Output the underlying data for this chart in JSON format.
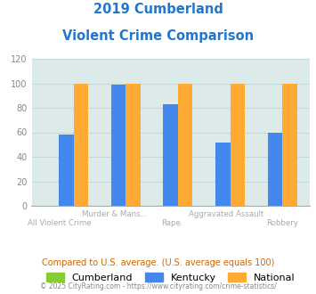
{
  "title_line1": "2019 Cumberland",
  "title_line2": "Violent Crime Comparison",
  "categories": [
    "All Violent Crime",
    "Murder & Mans...",
    "Rape",
    "Aggravated Assault",
    "Robbery"
  ],
  "series": {
    "Cumberland": [
      0,
      0,
      0,
      0,
      0
    ],
    "Kentucky": [
      58,
      99,
      83,
      52,
      60
    ],
    "National": [
      100,
      100,
      100,
      100,
      100
    ]
  },
  "colors": {
    "Cumberland": "#88cc33",
    "Kentucky": "#4488ee",
    "National": "#ffaa33"
  },
  "ylim": [
    0,
    120
  ],
  "yticks": [
    0,
    20,
    40,
    60,
    80,
    100,
    120
  ],
  "note": "Compared to U.S. average. (U.S. average equals 100)",
  "footer": "© 2025 CityRating.com - https://www.cityrating.com/crime-statistics/",
  "title_color": "#2277cc",
  "note_color": "#cc6600",
  "footer_color": "#888888",
  "bg_color": "#ffffff",
  "plot_bg": "#ddeaea",
  "grid_color": "#c5d8d8",
  "spine_color": "#aaaaaa"
}
